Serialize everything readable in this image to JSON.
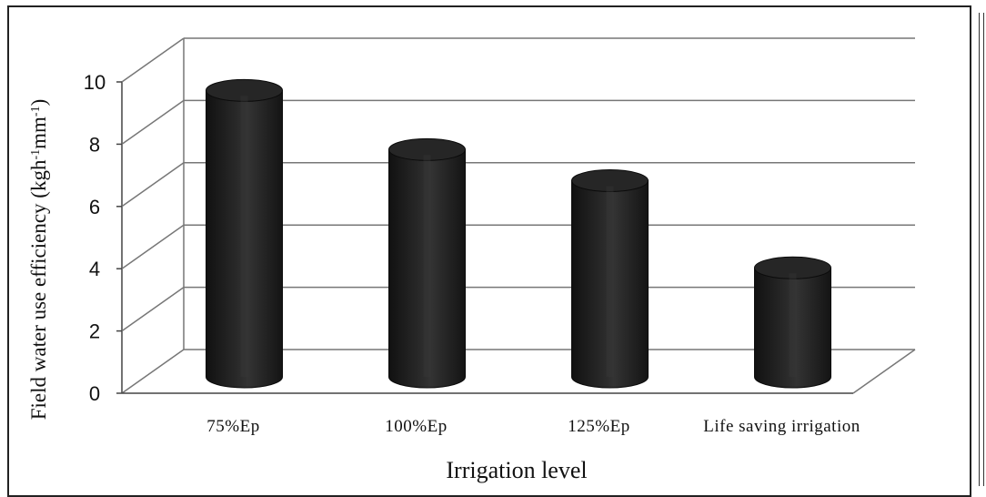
{
  "chart_data": {
    "type": "bar",
    "style": "3d-cylinder",
    "categories": [
      "75%Ep",
      "100%Ep",
      "125%Ep",
      "Life saving irrigation"
    ],
    "values": [
      9.2,
      7.3,
      6.3,
      3.5
    ],
    "title": "",
    "xlabel": "Irrigation level",
    "ylabel_main": "Field water use efficiency (kgh",
    "ylabel_sup1": "-1",
    "ylabel_mid": "mm",
    "ylabel_sup2": "-1",
    "ylabel_end": ")",
    "ylim": [
      0,
      10
    ],
    "yticks": [
      "0",
      "2",
      "4",
      "6",
      "8",
      "10"
    ],
    "grid": true,
    "legend": "none",
    "colors": {
      "bar": "#1c1c1c",
      "bar_highlight": "#3a3a3a",
      "grid": "#777777",
      "axis": "#444444"
    }
  }
}
